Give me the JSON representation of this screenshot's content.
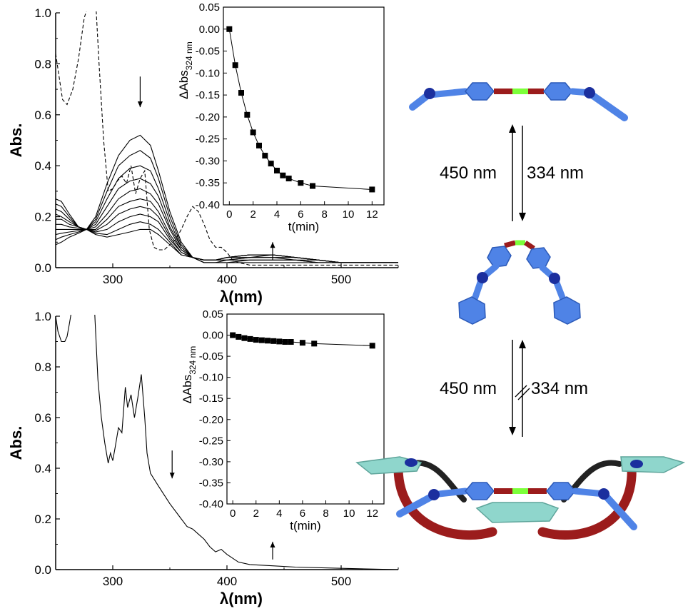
{
  "chart_data": [
    {
      "type": "line",
      "panel": "top-main",
      "xlabel": "λ(nm)",
      "ylabel": "Abs.",
      "xlim": [
        250,
        550
      ],
      "ylim": [
        0,
        1.0
      ],
      "xticks": [
        300,
        400,
        500
      ],
      "yticks": [
        "0.0",
        "0.2",
        "0.4",
        "0.6",
        "0.8",
        "1.0"
      ],
      "annotations": [
        "down arrow near 324 nm",
        "up arrow near 440 nm"
      ],
      "series": [
        {
          "style": "dashed",
          "x": [
            250,
            253,
            256,
            260,
            265,
            270,
            275,
            280,
            285,
            288,
            292,
            296,
            300,
            304,
            308,
            312,
            316,
            320,
            324,
            328,
            332,
            336,
            340,
            345,
            350,
            355,
            360,
            365,
            370,
            375,
            380,
            385,
            390,
            395,
            400,
            405,
            410,
            420,
            450,
            500,
            550
          ],
          "y": [
            0.84,
            0.75,
            0.66,
            0.64,
            0.7,
            0.82,
            0.98,
            1.05,
            1.05,
            0.8,
            0.5,
            0.3,
            0.31,
            0.34,
            0.36,
            0.33,
            0.4,
            0.29,
            0.35,
            0.38,
            0.15,
            0.08,
            0.07,
            0.07,
            0.09,
            0.11,
            0.15,
            0.2,
            0.24,
            0.22,
            0.17,
            0.11,
            0.08,
            0.08,
            0.06,
            0.03,
            0.02,
            0.01,
            0.01,
            0.01,
            0.01
          ]
        },
        {
          "style": "solid",
          "x": [
            250,
            255,
            262,
            270,
            277,
            285,
            295,
            305,
            315,
            324,
            333,
            340,
            350,
            360,
            370,
            380,
            390,
            400,
            420,
            440,
            460,
            480,
            500,
            550
          ],
          "y": [
            0.27,
            0.26,
            0.21,
            0.16,
            0.15,
            0.2,
            0.33,
            0.44,
            0.5,
            0.52,
            0.48,
            0.38,
            0.22,
            0.1,
            0.04,
            0.02,
            0.02,
            0.02,
            0.02,
            0.02,
            0.02,
            0.02,
            0.02,
            0.02
          ]
        },
        {
          "style": "solid",
          "x": [
            250,
            255,
            262,
            270,
            277,
            285,
            295,
            305,
            315,
            324,
            333,
            340,
            350,
            360,
            370,
            380,
            390,
            400,
            420,
            440,
            460,
            480,
            500,
            550
          ],
          "y": [
            0.25,
            0.24,
            0.2,
            0.16,
            0.15,
            0.19,
            0.3,
            0.4,
            0.44,
            0.46,
            0.43,
            0.35,
            0.2,
            0.09,
            0.04,
            0.02,
            0.02,
            0.02,
            0.03,
            0.03,
            0.03,
            0.02,
            0.02,
            0.02
          ]
        },
        {
          "style": "solid",
          "x": [
            250,
            255,
            262,
            270,
            277,
            285,
            295,
            305,
            315,
            324,
            333,
            340,
            350,
            360,
            370,
            380,
            390,
            400,
            420,
            440,
            460,
            480,
            500,
            550
          ],
          "y": [
            0.23,
            0.22,
            0.19,
            0.16,
            0.15,
            0.18,
            0.27,
            0.35,
            0.39,
            0.4,
            0.38,
            0.31,
            0.18,
            0.08,
            0.04,
            0.02,
            0.02,
            0.03,
            0.03,
            0.03,
            0.03,
            0.02,
            0.02,
            0.02
          ]
        },
        {
          "style": "solid",
          "x": [
            250,
            255,
            262,
            270,
            277,
            285,
            295,
            305,
            315,
            324,
            333,
            340,
            350,
            360,
            370,
            380,
            390,
            400,
            420,
            440,
            460,
            480,
            500,
            550
          ],
          "y": [
            0.21,
            0.2,
            0.18,
            0.16,
            0.15,
            0.17,
            0.24,
            0.31,
            0.34,
            0.35,
            0.33,
            0.28,
            0.16,
            0.08,
            0.04,
            0.03,
            0.03,
            0.03,
            0.04,
            0.04,
            0.03,
            0.03,
            0.02,
            0.02
          ]
        },
        {
          "style": "solid",
          "x": [
            250,
            255,
            262,
            270,
            277,
            285,
            295,
            305,
            315,
            324,
            333,
            340,
            350,
            360,
            370,
            380,
            390,
            400,
            420,
            440,
            460,
            480,
            500,
            550
          ],
          "y": [
            0.19,
            0.19,
            0.17,
            0.16,
            0.15,
            0.16,
            0.21,
            0.27,
            0.3,
            0.31,
            0.29,
            0.25,
            0.15,
            0.07,
            0.04,
            0.03,
            0.03,
            0.03,
            0.04,
            0.04,
            0.04,
            0.03,
            0.02,
            0.02
          ]
        },
        {
          "style": "solid",
          "x": [
            250,
            255,
            262,
            270,
            277,
            285,
            295,
            305,
            315,
            324,
            333,
            340,
            350,
            360,
            370,
            380,
            390,
            400,
            420,
            440,
            460,
            480,
            500,
            550
          ],
          "y": [
            0.17,
            0.17,
            0.16,
            0.155,
            0.15,
            0.15,
            0.19,
            0.24,
            0.26,
            0.27,
            0.26,
            0.22,
            0.13,
            0.07,
            0.04,
            0.03,
            0.03,
            0.04,
            0.04,
            0.05,
            0.04,
            0.03,
            0.02,
            0.02
          ]
        },
        {
          "style": "solid",
          "x": [
            250,
            255,
            262,
            270,
            277,
            285,
            295,
            305,
            315,
            324,
            333,
            340,
            350,
            360,
            370,
            380,
            390,
            400,
            420,
            440,
            460,
            480,
            500,
            550
          ],
          "y": [
            0.15,
            0.15,
            0.15,
            0.15,
            0.15,
            0.145,
            0.17,
            0.21,
            0.23,
            0.24,
            0.23,
            0.2,
            0.12,
            0.06,
            0.04,
            0.03,
            0.03,
            0.04,
            0.05,
            0.05,
            0.04,
            0.03,
            0.02,
            0.02
          ]
        },
        {
          "style": "solid",
          "x": [
            250,
            255,
            262,
            270,
            277,
            285,
            295,
            305,
            315,
            324,
            333,
            340,
            350,
            360,
            370,
            380,
            390,
            400,
            420,
            440,
            460,
            480,
            500,
            550
          ],
          "y": [
            0.13,
            0.135,
            0.14,
            0.145,
            0.15,
            0.14,
            0.15,
            0.18,
            0.2,
            0.21,
            0.2,
            0.18,
            0.11,
            0.06,
            0.04,
            0.03,
            0.03,
            0.04,
            0.05,
            0.05,
            0.04,
            0.03,
            0.02,
            0.02
          ]
        },
        {
          "style": "solid",
          "x": [
            250,
            255,
            262,
            270,
            277,
            285,
            295,
            305,
            315,
            324,
            333,
            340,
            350,
            360,
            370,
            380,
            390,
            400,
            420,
            440,
            460,
            480,
            500,
            550
          ],
          "y": [
            0.11,
            0.12,
            0.13,
            0.14,
            0.15,
            0.135,
            0.13,
            0.15,
            0.17,
            0.18,
            0.17,
            0.15,
            0.1,
            0.05,
            0.04,
            0.03,
            0.03,
            0.04,
            0.05,
            0.05,
            0.04,
            0.03,
            0.02,
            0.02
          ]
        },
        {
          "style": "solid",
          "x": [
            250,
            255,
            262,
            270,
            277,
            285,
            295,
            305,
            315,
            324,
            333,
            340,
            350,
            360,
            370,
            380,
            390,
            400,
            420,
            440,
            460,
            480,
            500,
            550
          ],
          "y": [
            0.09,
            0.1,
            0.12,
            0.135,
            0.15,
            0.13,
            0.12,
            0.13,
            0.14,
            0.15,
            0.15,
            0.13,
            0.09,
            0.05,
            0.04,
            0.03,
            0.03,
            0.04,
            0.05,
            0.05,
            0.04,
            0.03,
            0.02,
            0.02
          ]
        }
      ]
    },
    {
      "type": "scatter",
      "panel": "top-inset",
      "xlabel": "t(min)",
      "ylabel": "ΔAbs",
      "ylabel_sub": "324 nm",
      "xlim": [
        -0.5,
        13
      ],
      "ylim": [
        -0.4,
        0.05
      ],
      "xticks": [
        "0",
        "2",
        "4",
        "6",
        "8",
        "10",
        "12"
      ],
      "yticks": [
        "0.05",
        "0.00",
        "-0.05",
        "-0.10",
        "-0.15",
        "-0.20",
        "-0.25",
        "-0.30",
        "-0.35",
        "-0.40"
      ],
      "x": [
        0,
        0.5,
        1.0,
        1.5,
        2.0,
        2.5,
        3.0,
        3.5,
        4.0,
        4.5,
        5.0,
        6.0,
        7.0,
        12.0
      ],
      "y": [
        0.0,
        -0.082,
        -0.145,
        -0.195,
        -0.235,
        -0.265,
        -0.288,
        -0.306,
        -0.322,
        -0.333,
        -0.34,
        -0.35,
        -0.357,
        -0.365
      ]
    },
    {
      "type": "line",
      "panel": "bottom-main",
      "xlabel": "λ(nm)",
      "ylabel": "Abs.",
      "xlim": [
        250,
        550
      ],
      "ylim": [
        0,
        1.0
      ],
      "xticks": [
        300,
        400,
        500
      ],
      "yticks": [
        "0.0",
        "0.2",
        "0.4",
        "0.6",
        "0.8",
        "1.0"
      ],
      "annotations": [
        "down arrow near 352 nm",
        "up arrow near 440 nm"
      ],
      "series": [
        {
          "style": "solid",
          "x": [
            250,
            252,
            255,
            258,
            260,
            262,
            265
          ],
          "y": [
            1.0,
            0.94,
            0.9,
            0.9,
            0.92,
            0.97,
            1.05
          ]
        },
        {
          "style": "solid",
          "x": [
            284,
            287,
            290,
            293,
            296,
            298,
            300,
            302,
            305,
            308,
            311,
            313,
            316,
            319,
            322,
            325,
            328,
            330,
            333,
            340,
            350,
            360,
            365,
            370,
            375,
            380,
            385,
            390,
            395,
            400,
            410,
            420,
            440,
            460,
            500,
            550
          ],
          "y": [
            1.03,
            0.75,
            0.6,
            0.5,
            0.42,
            0.46,
            0.43,
            0.48,
            0.56,
            0.54,
            0.72,
            0.64,
            0.69,
            0.6,
            0.68,
            0.77,
            0.6,
            0.46,
            0.38,
            0.33,
            0.26,
            0.2,
            0.17,
            0.16,
            0.14,
            0.12,
            0.09,
            0.07,
            0.08,
            0.06,
            0.03,
            0.02,
            0.015,
            0.01,
            0.005,
            0.0
          ]
        }
      ]
    },
    {
      "type": "scatter",
      "panel": "bottom-inset",
      "xlabel": "t(min)",
      "ylabel": "ΔAbs",
      "ylabel_sub": "324 nm",
      "xlim": [
        -0.5,
        13
      ],
      "ylim": [
        -0.4,
        0.05
      ],
      "xticks": [
        "0",
        "2",
        "4",
        "6",
        "8",
        "10",
        "12"
      ],
      "yticks": [
        "0.05",
        "0.00",
        "-0.05",
        "-0.10",
        "-0.15",
        "-0.20",
        "-0.25",
        "-0.30",
        "-0.35",
        "-0.40"
      ],
      "x": [
        0,
        0.5,
        1.0,
        1.5,
        2.0,
        2.5,
        3.0,
        3.5,
        4.0,
        4.5,
        5.0,
        6.0,
        7.0,
        12.0
      ],
      "y": [
        0.0,
        -0.004,
        -0.007,
        -0.009,
        -0.011,
        -0.012,
        -0.013,
        -0.014,
        -0.015,
        -0.016,
        -0.016,
        -0.018,
        -0.02,
        -0.025
      ]
    }
  ],
  "scheme": {
    "label_top_left": "450 nm",
    "label_top_right": "334 nm",
    "label_bottom_left": "450 nm",
    "label_bottom_right": "334 nm",
    "colors": {
      "blue": "#4f83e6",
      "dark_blue": "#1b2f9e",
      "red": "#9b1c1c",
      "green": "#7cff3a",
      "cyan": "#8fd6cc"
    }
  }
}
